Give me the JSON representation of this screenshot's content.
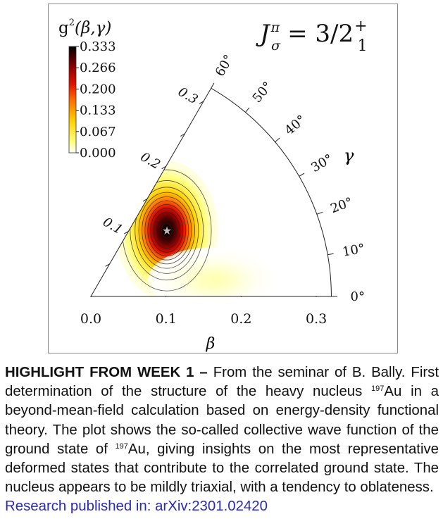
{
  "chart_data": {
    "type": "heatmap",
    "projection": "polar beta-gamma sextant",
    "title": "J^π_σ = 3/2^+_1",
    "title_parts": {
      "J": "J",
      "sup": "π",
      "sub": "σ",
      "rhs": "= 3/2",
      "rhs_sup": "+",
      "rhs_sub": "1"
    },
    "colorbar": {
      "label": "g²(β,γ)",
      "label_parts": {
        "g": "g",
        "sup": "2",
        "args": "(β,γ)"
      },
      "ticks": [
        "0.333",
        "0.266",
        "0.200",
        "0.133",
        "0.067",
        "0.000"
      ],
      "range": [
        0,
        0.333
      ],
      "colormap": "hot_r"
    },
    "xlabel": "β",
    "x_ticks": [
      "0.0",
      "0.1",
      "0.2",
      "0.3"
    ],
    "beta_edge_ticks": [
      "0.1",
      "0.2",
      "0.3"
    ],
    "gamma_label": "γ",
    "gamma_ticks": [
      "0°",
      "10°",
      "20°",
      "30°",
      "40°",
      "50°",
      "60°"
    ],
    "beta_max": 0.32,
    "peak": {
      "beta": 0.134,
      "gamma_deg": 41,
      "value": 0.333,
      "marker": "star"
    },
    "components": [
      {
        "x": 0.101,
        "y": 0.088,
        "sx": 0.025,
        "sy": 0.034,
        "amp": 0.333
      },
      {
        "x": 0.163,
        "y": 0.022,
        "sx": 0.032,
        "sy": 0.016,
        "amp": 0.02
      }
    ],
    "contour_levels": [
      0.02,
      0.05,
      0.08,
      0.11,
      0.14,
      0.17,
      0.2,
      0.23,
      0.26,
      0.29,
      0.32
    ]
  },
  "caption": {
    "heading": "HIGHLIGHT FROM WEEK 1 –",
    "part1": " From the seminar of B. Bally. First determination of the structure of the heavy nucleus ",
    "sup1": "197",
    "part2": "Au in a beyond-mean-field calculation based on energy-density functional theory. The plot shows the so-called collective wave function of the ground state of ",
    "sup2": "197",
    "part3": "Au, giving insights on the most representative deformed states that contribute to the correlated ground state. The nucleus appears to be mildly triaxial, with a tendency to oblateness.",
    "link": "Research published in: arXiv:2301.02420"
  }
}
